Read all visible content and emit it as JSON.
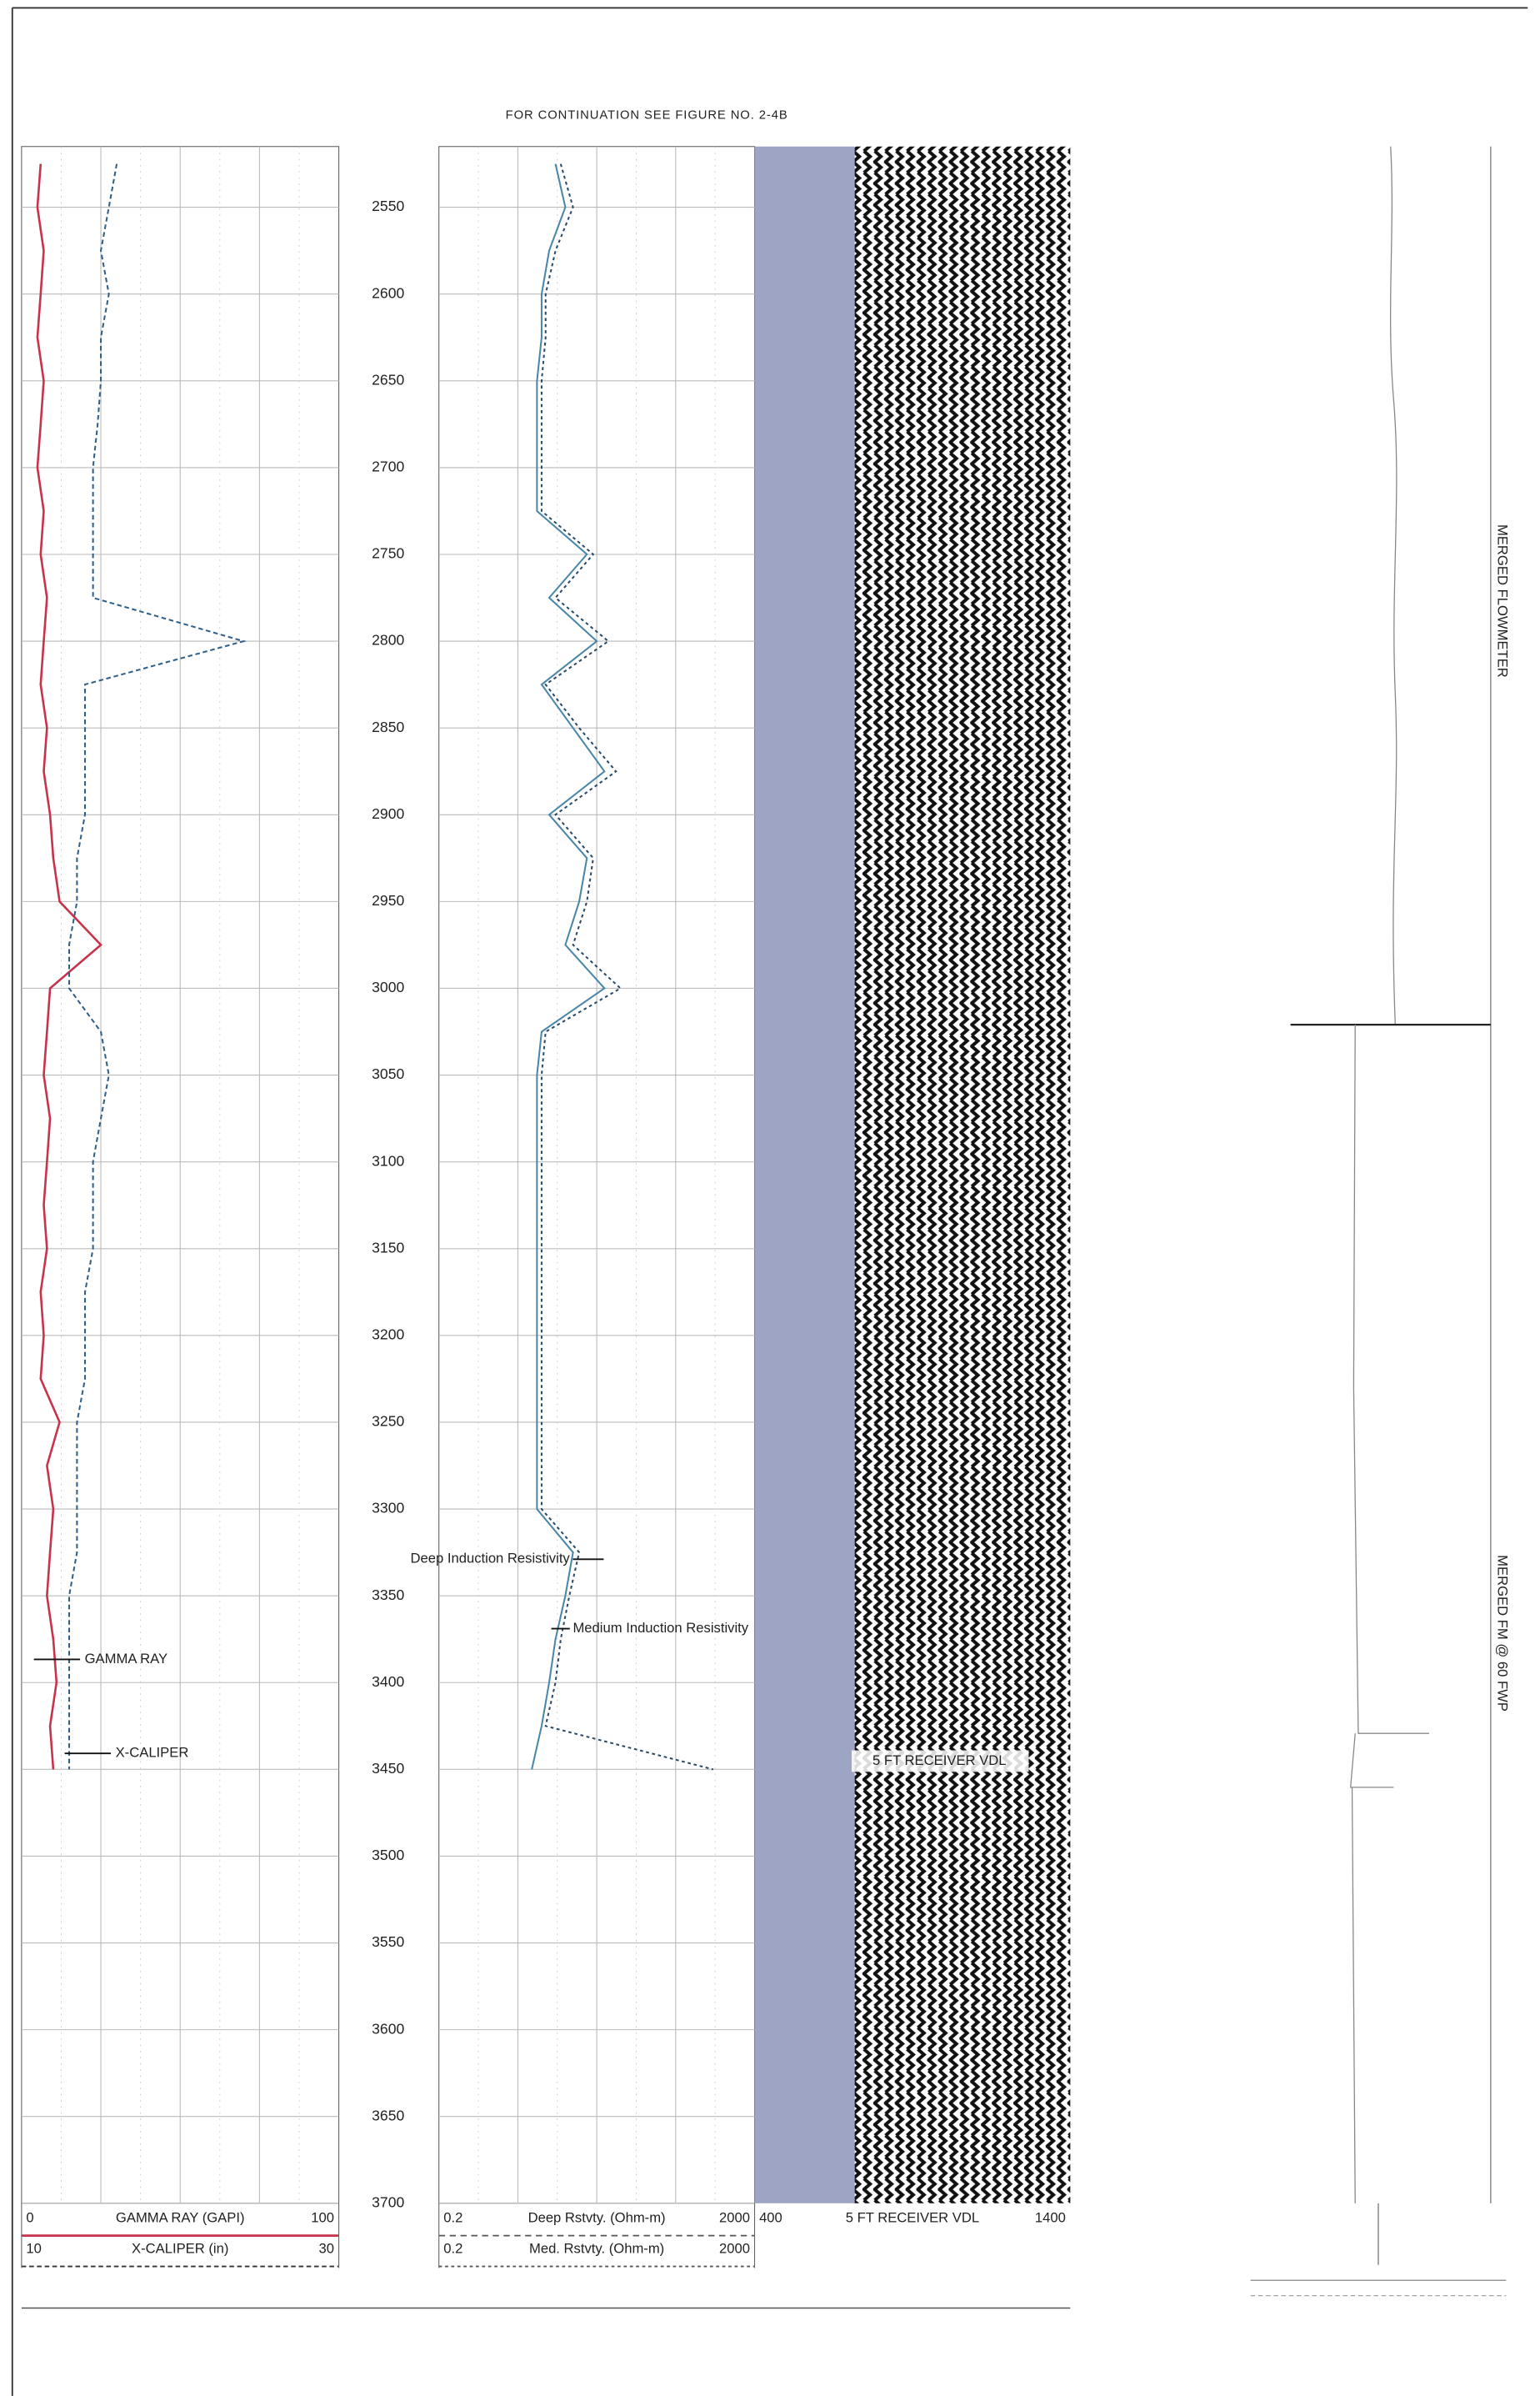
{
  "chart_data": {
    "type": "well-log",
    "caption": "FOR CONTINUATION SEE FIGURE NO. 2-4B",
    "ylim": [
      2515,
      3700
    ],
    "yticks": [
      2550,
      2600,
      2650,
      2700,
      2750,
      2800,
      2850,
      2900,
      2950,
      3000,
      3050,
      3100,
      3150,
      3200,
      3250,
      3300,
      3350,
      3400,
      3450,
      3500,
      3550,
      3600,
      3650,
      3700
    ],
    "grid": true,
    "headers": [
      {
        "min": 0,
        "title": "GAMMA RAY (GAPI)",
        "max": 100,
        "color": "#c8324a"
      },
      {
        "min": 10,
        "title": "X-CALIPER (in)",
        "max": 30,
        "color": "#333333"
      },
      {
        "min": 0.2,
        "title": "Deep Rstvty. (Ohm-m)",
        "max": 2000,
        "color": "#555555"
      },
      {
        "min": 0.2,
        "title": "Med. Rstvty. (Ohm-m)",
        "max": 2000,
        "color": "#555555"
      },
      {
        "min": 400,
        "title": "5 FT RECEIVER VDL",
        "max": 1400,
        "color": "#333333"
      }
    ],
    "depths": [
      2525,
      2550,
      2575,
      2600,
      2625,
      2650,
      2675,
      2700,
      2725,
      2750,
      2775,
      2800,
      2825,
      2850,
      2875,
      2900,
      2925,
      2950,
      2975,
      3000,
      3025,
      3050,
      3075,
      3100,
      3125,
      3150,
      3175,
      3200,
      3225,
      3250,
      3275,
      3300,
      3325,
      3350,
      3375,
      3400,
      3425,
      3450
    ],
    "series": [
      {
        "name": "GAMMA RAY",
        "color": "#c8324a",
        "values": [
          6,
          5,
          7,
          6,
          5,
          7,
          6,
          5,
          7,
          6,
          8,
          7,
          6,
          8,
          7,
          9,
          10,
          12,
          25,
          9,
          8,
          7,
          9,
          8,
          7,
          8,
          6,
          7,
          6,
          12,
          8,
          10,
          9,
          8,
          10,
          11,
          9,
          10
        ]
      },
      {
        "name": "X-CALIPER",
        "color": "#2f5f8a",
        "values": [
          16,
          15.5,
          15,
          15.5,
          15,
          15,
          14.8,
          14.5,
          14.5,
          14.5,
          14.5,
          24,
          14,
          14,
          14,
          14,
          13.5,
          13.5,
          13,
          13,
          15,
          15.5,
          15,
          14.5,
          14.5,
          14.5,
          14,
          14,
          14,
          13.5,
          13.5,
          13.5,
          13.5,
          13,
          13,
          13,
          13,
          13
        ]
      },
      {
        "name": "Deep Induction Resistivity",
        "color": "#4a86a8",
        "values": [
          6,
          8,
          5,
          4,
          4,
          3.5,
          3.5,
          3.5,
          3.5,
          15,
          5,
          20,
          4,
          10,
          25,
          5,
          15,
          12,
          8,
          25,
          4,
          3.5,
          3.5,
          3.5,
          3.5,
          3.5,
          3.5,
          3.5,
          3.5,
          3.5,
          3.5,
          3.5,
          10,
          8,
          6,
          5,
          4,
          3
        ]
      },
      {
        "name": "Medium Induction Resistivity",
        "color": "#2b4a66",
        "values": [
          7,
          10,
          6,
          4.5,
          4.5,
          4,
          4,
          4,
          4,
          18,
          6,
          28,
          4.5,
          12,
          35,
          6,
          18,
          15,
          10,
          40,
          4.5,
          4,
          4,
          4,
          4,
          4,
          4,
          4,
          4,
          4,
          4,
          4,
          12,
          9,
          7,
          6,
          4.5,
          600
        ]
      }
    ],
    "vdl_label": "5 FT RECEIVER VDL",
    "side_labels": [
      "MERGED FLOWMETER",
      "MERGED FM @ 60 FWP"
    ]
  }
}
